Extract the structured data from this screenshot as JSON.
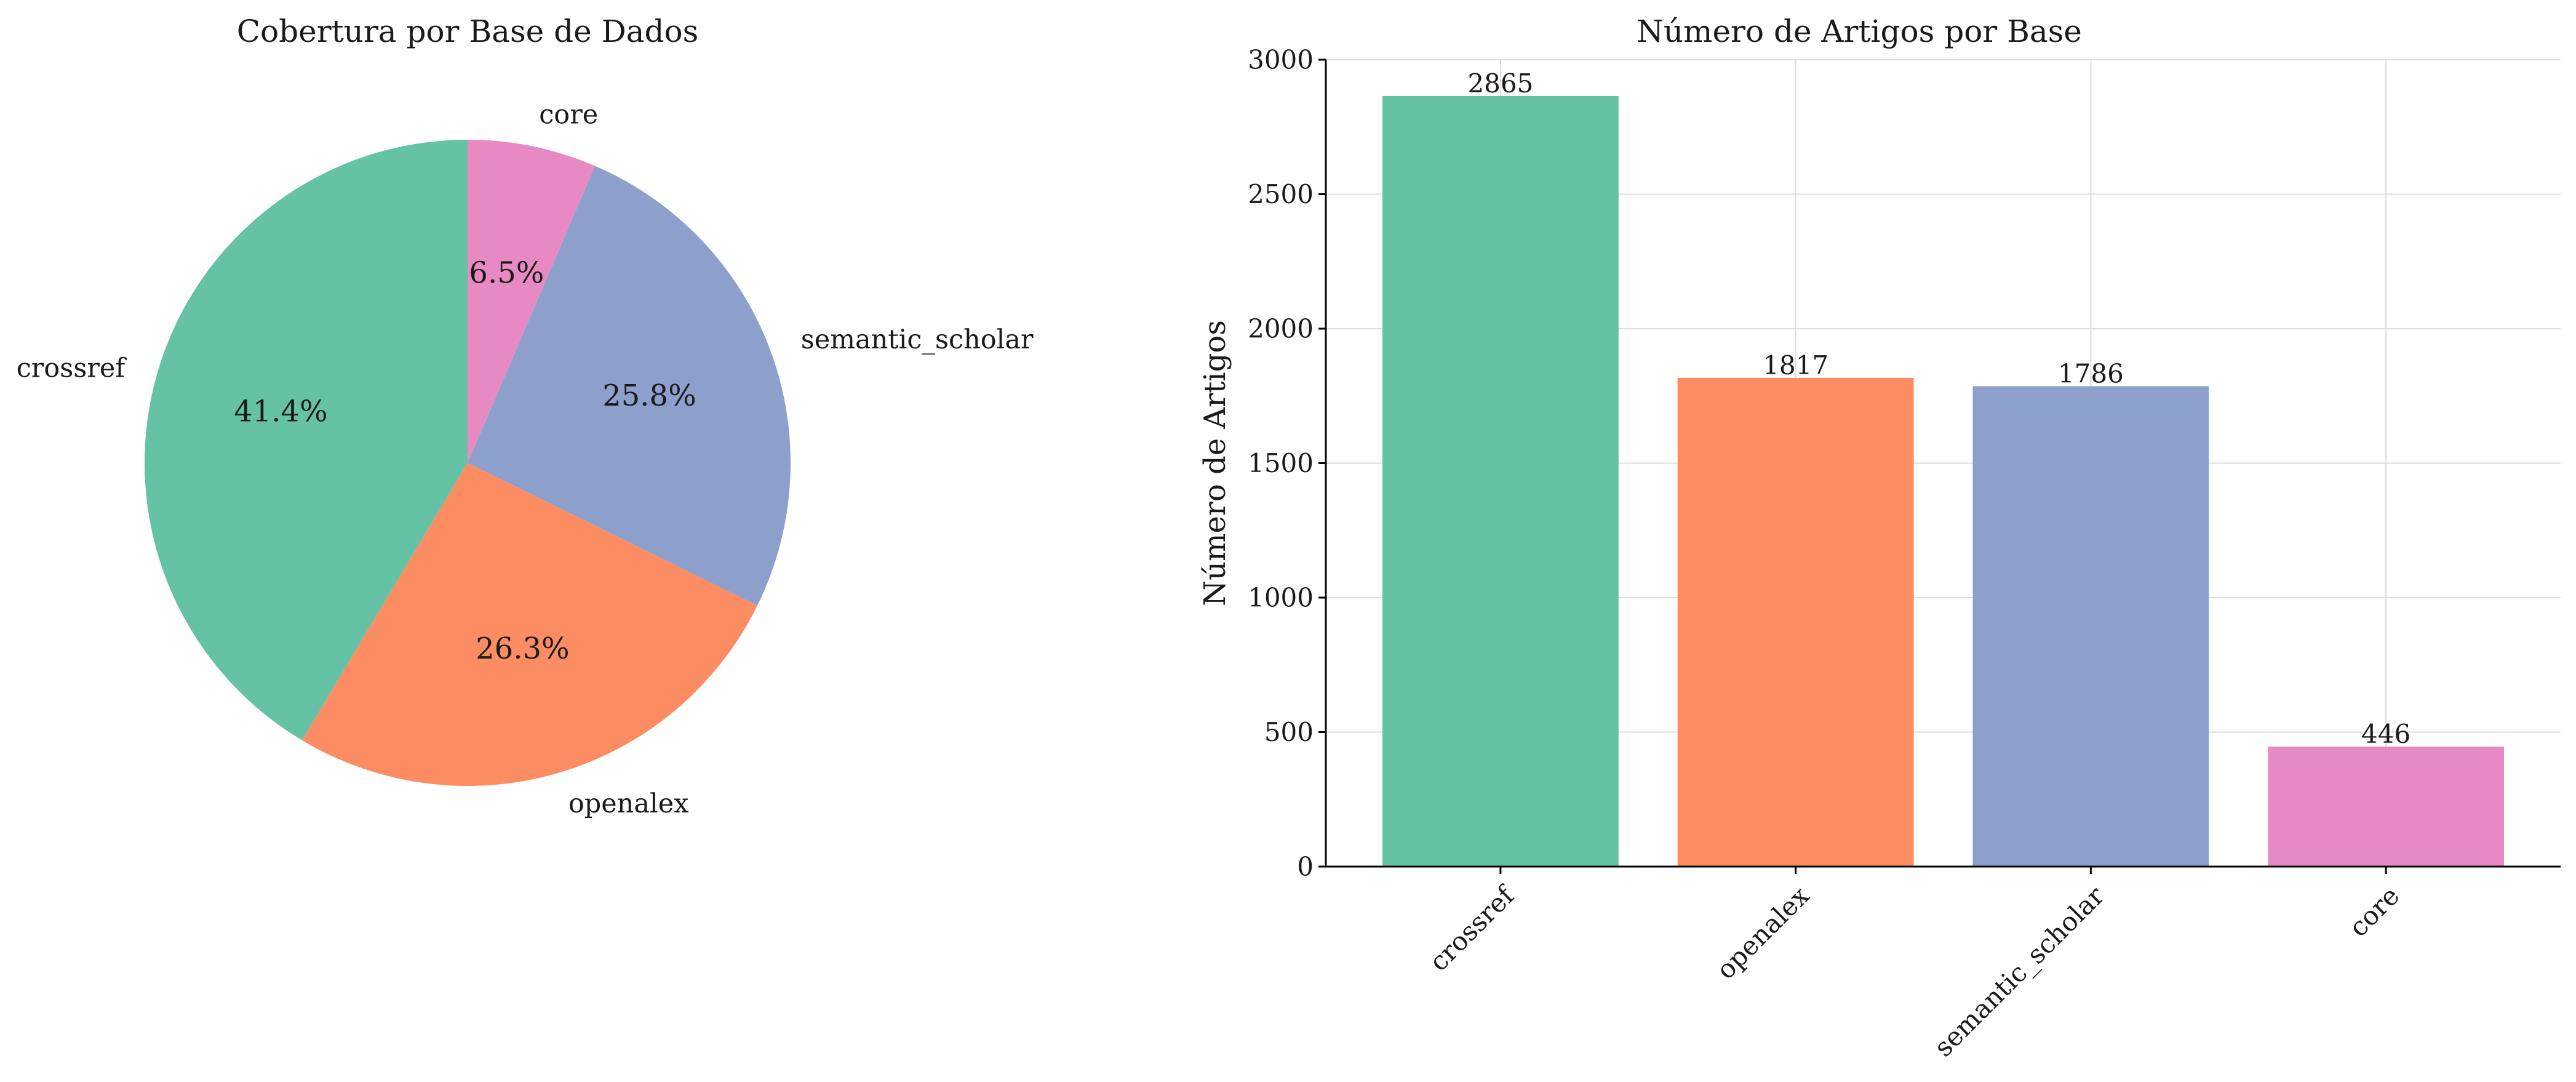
{
  "chart_data": [
    {
      "type": "pie",
      "title": "Cobertura por Base de Dados",
      "categories": [
        "crossref",
        "openalex",
        "semantic_scholar",
        "core"
      ],
      "values": [
        2865,
        1817,
        1786,
        446
      ],
      "percent_labels": [
        "41.4%",
        "26.3%",
        "25.8%",
        "6.5%"
      ],
      "colors": [
        "#66c2a5",
        "#fc8d62",
        "#8da0cb",
        "#e78ac3"
      ],
      "start_angle_deg": 90,
      "direction": "counterclockwise"
    },
    {
      "type": "bar",
      "title": "Número de Artigos por Base",
      "categories": [
        "crossref",
        "openalex",
        "semantic_scholar",
        "core"
      ],
      "values": [
        2865,
        1817,
        1786,
        446
      ],
      "colors": [
        "#66c2a5",
        "#fc8d62",
        "#8da0cb",
        "#e78ac3"
      ],
      "xlabel": "",
      "ylabel": "Número de Artigos",
      "ylim": [
        0,
        3000
      ],
      "yticks": [
        0,
        500,
        1000,
        1500,
        2000,
        2500,
        3000
      ],
      "grid": true,
      "data_labels": true
    }
  ]
}
